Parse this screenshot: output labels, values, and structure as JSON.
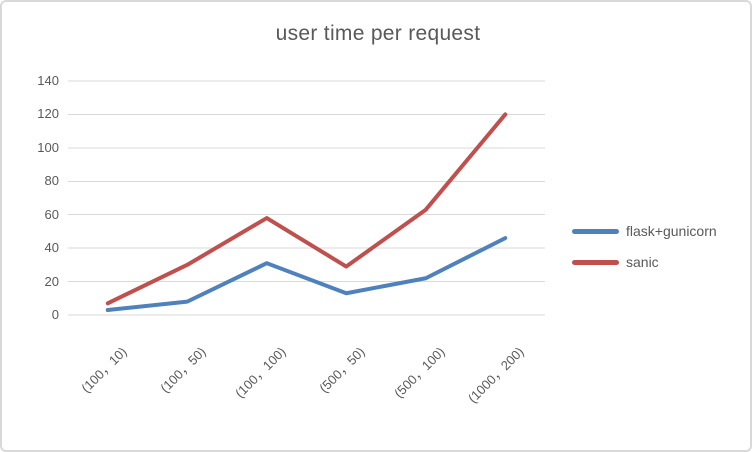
{
  "chart_data": {
    "type": "line",
    "title": "user time per request",
    "categories": [
      "(100，10)",
      "(100，50)",
      "(100，100)",
      "(500，50)",
      "(500，100)",
      "(1000，200)"
    ],
    "series": [
      {
        "name": "flask+gunicorn",
        "color": "#4F81BD",
        "values": [
          3,
          8,
          31,
          13,
          22,
          46
        ]
      },
      {
        "name": "sanic",
        "color": "#C0504D",
        "values": [
          7,
          30,
          58,
          29,
          63,
          120
        ]
      }
    ],
    "ylim": [
      0,
      140
    ],
    "yticks": [
      0,
      20,
      40,
      60,
      80,
      100,
      120,
      140
    ],
    "grid": "horizontal-only",
    "gridline_color": "#d9d9d9",
    "text_color": "#595959",
    "background_color": "#ffffff",
    "legend_position": "right"
  }
}
